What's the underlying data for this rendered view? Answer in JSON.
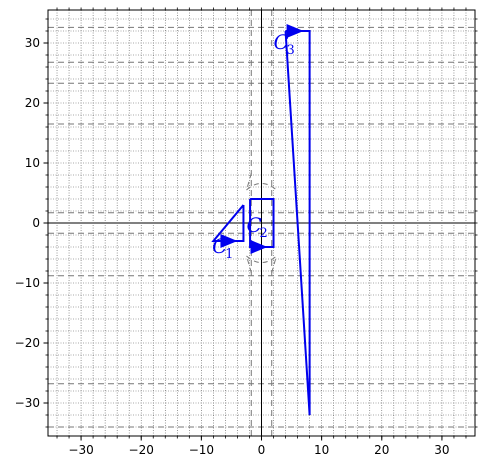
{
  "chart_data": {
    "type": "line",
    "title": "",
    "xlabel": "",
    "ylabel": "",
    "xlim": [
      -35.5,
      35.5
    ],
    "ylim": [
      -35.5,
      35.5
    ],
    "x_ticks": [
      -30,
      -20,
      -10,
      0,
      10,
      20,
      30
    ],
    "y_ticks": [
      -30,
      -20,
      -10,
      0,
      10,
      20,
      30
    ],
    "x_tick_labels": [
      "−30",
      "−20",
      "−10",
      "0",
      "10",
      "20",
      "30"
    ],
    "y_tick_labels": [
      "−30",
      "−20",
      "−10",
      "0",
      "10",
      "20",
      "30"
    ],
    "grid": "dotted minor grid",
    "axes_lines": {
      "x": 0,
      "y": 0,
      "color": "#000000"
    },
    "colors": {
      "curve": "#0000ee",
      "dashed_lines": "#777777",
      "grid": "#555555"
    },
    "dashed_vertical_lines": [
      -1.7,
      1.7
    ],
    "dashed_horizontal_lines": [
      32.6,
      26.8,
      23.3,
      16.5,
      1.7,
      -1.7,
      -8.8,
      -26.8,
      -34.0
    ],
    "dashed_arcs": [
      {
        "points": [
          [
            -1.7,
            8.3
          ],
          [
            -2.1,
            6.8
          ],
          [
            -2.5,
            5.5
          ]
        ]
      },
      {
        "points": [
          [
            -2.5,
            5.5
          ],
          [
            0,
            7.7
          ],
          [
            2.5,
            5.5
          ]
        ]
      },
      {
        "points": [
          [
            -2.5,
            -5.5
          ],
          [
            0,
            -7.7
          ],
          [
            2.5,
            -5.5
          ]
        ]
      },
      {
        "points": [
          [
            -1.7,
            -8.3
          ],
          [
            -2.1,
            -6.8
          ],
          [
            -2.5,
            -5.5
          ]
        ]
      },
      {
        "points": [
          [
            1.7,
            -8.3
          ],
          [
            2.1,
            -6.8
          ],
          [
            2.5,
            -5.5
          ]
        ]
      }
    ],
    "series": [
      {
        "label": "C",
        "subscript": "1",
        "points": [
          [
            -3.0,
            3.0
          ],
          [
            -3.0,
            -3.0
          ],
          [
            -8.0,
            -3.0
          ],
          [
            -3.0,
            3.0
          ]
        ],
        "arrow_at": [
          -5.5,
          -3.0
        ],
        "arrow_dir": "right",
        "label_at": [
          -8.2,
          -5.0
        ]
      },
      {
        "label": "C",
        "subscript": "2",
        "points": [
          [
            -1.9,
            4.0
          ],
          [
            2.0,
            4.0
          ],
          [
            2.0,
            -4.0
          ],
          [
            -1.9,
            -4.0
          ],
          [
            -1.9,
            4.0
          ]
        ],
        "arrow_at": [
          -0.5,
          -4.0
        ],
        "arrow_dir": "right",
        "label_at": [
          -2.5,
          -1.5
        ]
      },
      {
        "label": "C",
        "subscript": "3",
        "points": [
          [
            4.0,
            32.0
          ],
          [
            8.0,
            32.0
          ],
          [
            8.0,
            -32.0
          ],
          [
            4.0,
            32.0
          ]
        ],
        "arrow_at": [
          5.5,
          32.0
        ],
        "arrow_dir": "right",
        "label_at": [
          2.0,
          29.0
        ]
      }
    ]
  }
}
